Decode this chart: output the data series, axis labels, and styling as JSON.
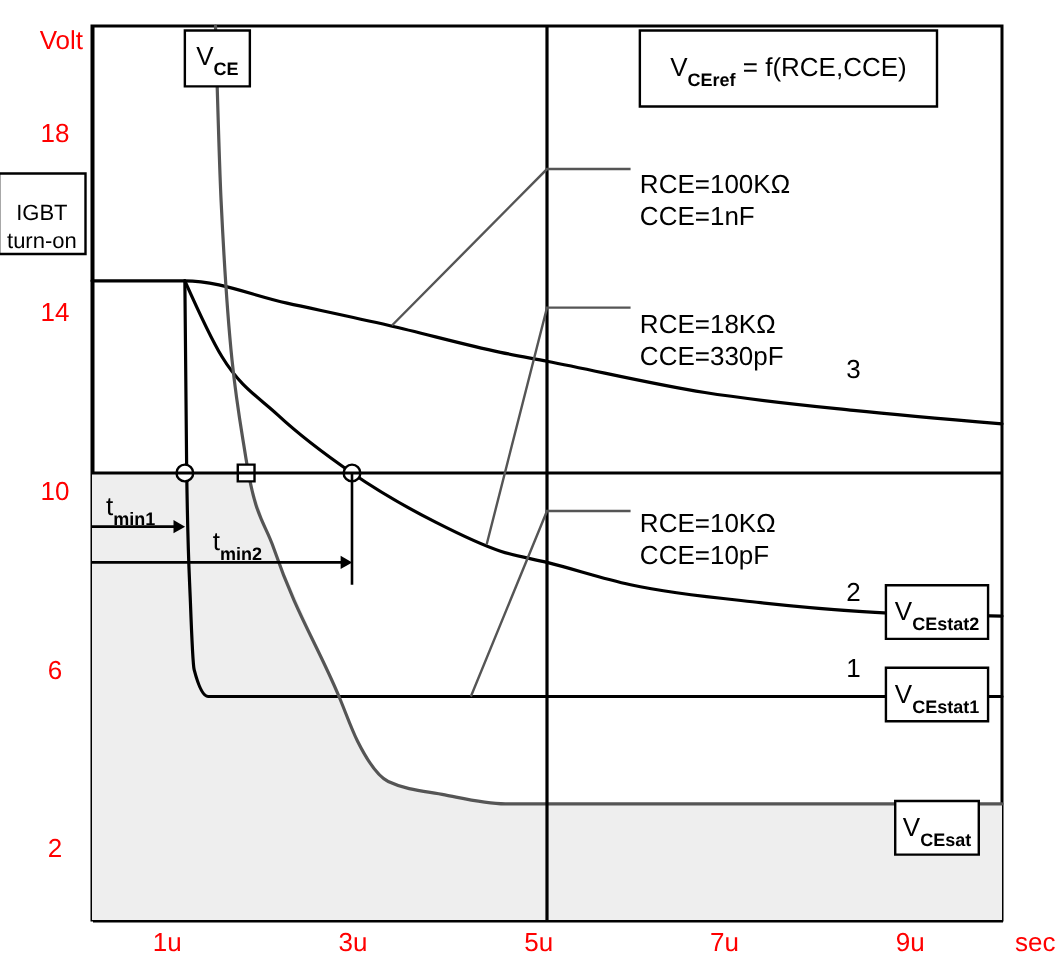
{
  "chart_data": {
    "type": "line",
    "xlabel": "sec",
    "ylabel": "Volt",
    "xlim": [
      0.2,
      10
    ],
    "ylim": [
      0.4,
      20.4
    ],
    "xticks": [
      {
        "value": 1,
        "label": "1u"
      },
      {
        "value": 3,
        "label": "3u"
      },
      {
        "value": 5,
        "label": "5u"
      },
      {
        "value": 7,
        "label": "7u"
      },
      {
        "value": 9,
        "label": "9u"
      }
    ],
    "yticks": [
      2,
      6,
      10,
      14,
      18
    ],
    "series": [
      {
        "type": "area",
        "color": "#eeeeee",
        "x": [
          0.2,
          1.8,
          2.16,
          2.86,
          3.06,
          3.39,
          4.0,
          4.65,
          10
        ],
        "values": [
          10.4,
          10.4,
          8.7,
          5.4,
          4.4,
          3.5,
          3.2,
          3.0,
          3.0
        ]
      },
      {
        "color": "#000000",
        "x": [
          0.2,
          1.2,
          2.3,
          3.4,
          4.6,
          5.1,
          6.8,
          8.4,
          10
        ],
        "values": [
          14.7,
          14.7,
          14.2,
          13.7,
          13.1,
          12.9,
          12.2,
          11.8,
          11.5
        ]
      },
      {
        "color": "#000000",
        "x": [
          1.2,
          1.6,
          2.2,
          3.0,
          3.9,
          4.6,
          5.1,
          6.0,
          7.4,
          8.5,
          10
        ],
        "values": [
          14.7,
          13.0,
          11.7,
          10.4,
          9.3,
          8.65,
          8.4,
          7.9,
          7.5,
          7.3,
          7.2
        ]
      },
      {
        "color": "#000000",
        "x": [
          1.2,
          1.22,
          1.26,
          1.3,
          1.45,
          10
        ],
        "values": [
          14.7,
          10.4,
          7.5,
          6.0,
          5.4,
          5.4
        ]
      },
      {
        "color": "#555555",
        "x": [
          1.53,
          1.59,
          1.86,
          2.16,
          2.86,
          3.06,
          3.39,
          4.0,
          4.65,
          10
        ],
        "values": [
          20.4,
          16.5,
          10.7,
          8.7,
          5.4,
          4.4,
          3.5,
          3.2,
          3.0,
          3.0
        ]
      },
      {
        "type": "scatter",
        "marker": "circle",
        "color": "#ffffff",
        "x": [
          1.2,
          3.0
        ],
        "values": [
          10.4,
          10.4
        ]
      },
      {
        "type": "scatter",
        "marker": "square",
        "color": "#ffffff",
        "x": [
          1.86
        ],
        "values": [
          10.4
        ]
      }
    ],
    "ref_lines": [
      {
        "axis": "x",
        "value": 5.1
      },
      {
        "axis": "y",
        "value": 10.4
      }
    ],
    "annotations": [
      "V$_{CE}$",
      "IGBT\nturn-on",
      "V$_{CEref}$ = f(RCE,CCE)",
      {
        "text": "RCE=100KΩ\nCCE=1nF",
        "x": 3.43,
        "y": 13.7
      },
      {
        "text": "RCE=18KΩ\nCCE=330pF",
        "x": 4.45,
        "y": 8.8
      },
      {
        "text": "RCE=10KΩ\nCCE=10pF",
        "x": 4.28,
        "y": 5.4
      },
      "t$_{min1}$",
      "t$_{min2}$",
      {
        "text": "3",
        "x": 8.4,
        "y": 11.8
      },
      {
        "text": "2",
        "x": 8.4,
        "y": 7.4
      },
      {
        "text": "1",
        "x": 8.4,
        "y": 5.4
      },
      {
        "text": "V$_{CEstat2}$",
        "x": 9.3,
        "y": 7.2
      },
      {
        "text": "V$_{CEstat1}$",
        "x": 9.3,
        "y": 5.4
      },
      {
        "text": "V$_{CEsat}$",
        "x": 9.3,
        "y": 3.0
      }
    ]
  }
}
